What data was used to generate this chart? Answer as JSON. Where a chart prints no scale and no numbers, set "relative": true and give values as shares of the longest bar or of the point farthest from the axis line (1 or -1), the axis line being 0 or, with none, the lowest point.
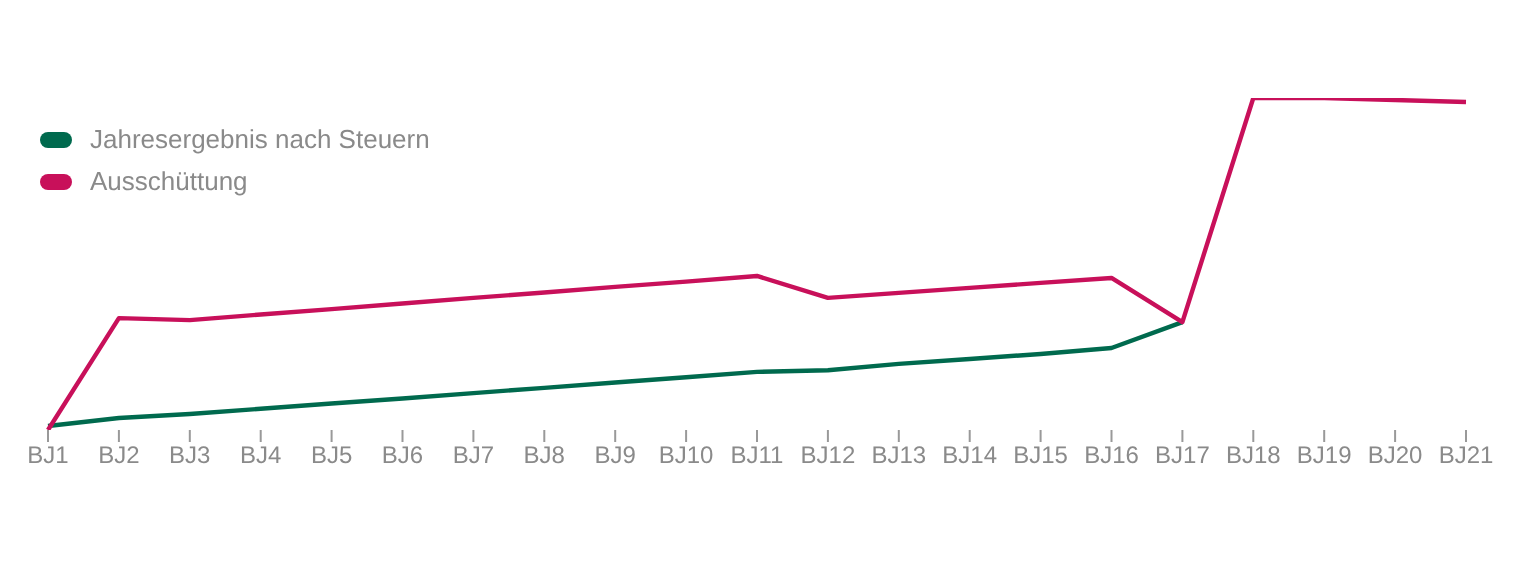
{
  "chart_data": {
    "type": "line",
    "relative": true,
    "legend": "top left",
    "grid": false,
    "marker": "none",
    "categories": [
      "BJ1",
      "BJ2",
      "BJ3",
      "BJ4",
      "BJ5",
      "BJ6",
      "BJ7",
      "BJ8",
      "BJ9",
      "BJ10",
      "BJ11",
      "BJ12",
      "BJ13",
      "BJ14",
      "BJ15",
      "BJ16",
      "BJ17",
      "BJ18",
      "BJ19",
      "BJ20",
      "BJ21"
    ],
    "series": [
      {
        "name": "Jahresergebnis nach Steuern",
        "color": "#006a4e",
        "values": [
          0.012,
          0.036,
          0.048,
          0.064,
          0.08,
          0.095,
          0.111,
          0.127,
          0.143,
          0.159,
          0.175,
          0.18,
          0.199,
          0.214,
          0.229,
          0.247,
          0.325,
          null,
          null,
          null,
          null
        ]
      },
      {
        "name": "Ausschüttung",
        "color": "#c8105a",
        "values": [
          0,
          0.337,
          0.331,
          0.348,
          0.364,
          0.381,
          0.398,
          0.414,
          0.431,
          0.447,
          0.464,
          0.398,
          0.413,
          0.428,
          0.443,
          0.458,
          0.325,
          1,
          1,
          0.994,
          0.988
        ]
      }
    ]
  }
}
